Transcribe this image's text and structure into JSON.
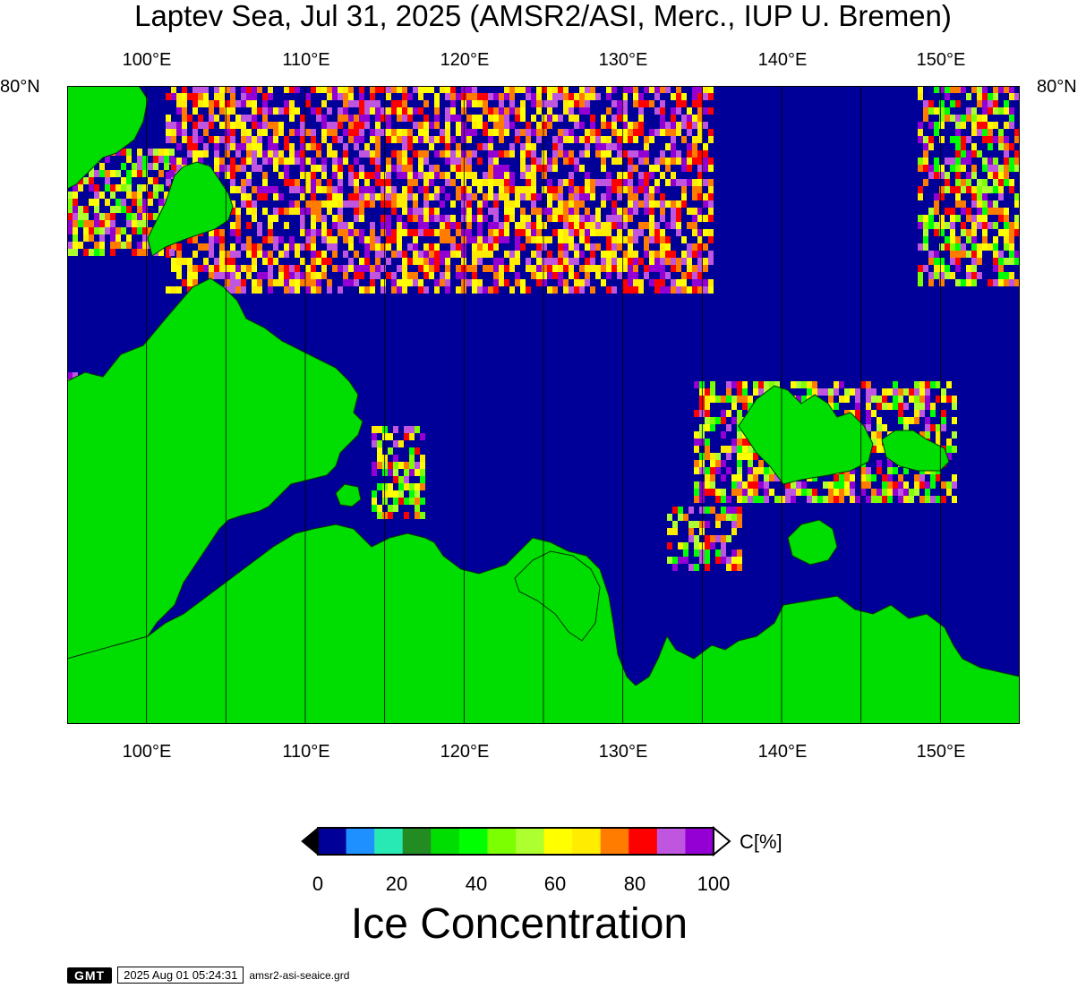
{
  "title": "Laptev Sea, Jul 31, 2025 (AMSR2/ASI, Merc., IUP U. Bremen)",
  "lon_labels": [
    "100°E",
    "110°E",
    "120°E",
    "130°E",
    "140°E",
    "150°E"
  ],
  "lat_label": "80°N",
  "map": {
    "lon_range": [
      95,
      155
    ],
    "land_color": "#00dd00",
    "ocean_color": "#000098"
  },
  "colorbar": {
    "colors": [
      "#000098",
      "#1e90ff",
      "#28e8b4",
      "#228b22",
      "#00dd00",
      "#00ff00",
      "#7cff00",
      "#adff2f",
      "#ffff00",
      "#ffec00",
      "#ff7c00",
      "#ff0000",
      "#c056e0",
      "#9400d3"
    ],
    "tick_labels": [
      "0",
      "20",
      "40",
      "60",
      "80",
      "100"
    ],
    "unit": "C[%]"
  },
  "colorbar_title": "Ice Concentration",
  "footer": {
    "logo": "GMT",
    "timestamp": "2025 Aug 01 05:24:31",
    "filename": "amsr2-asi-seaice.grd"
  }
}
